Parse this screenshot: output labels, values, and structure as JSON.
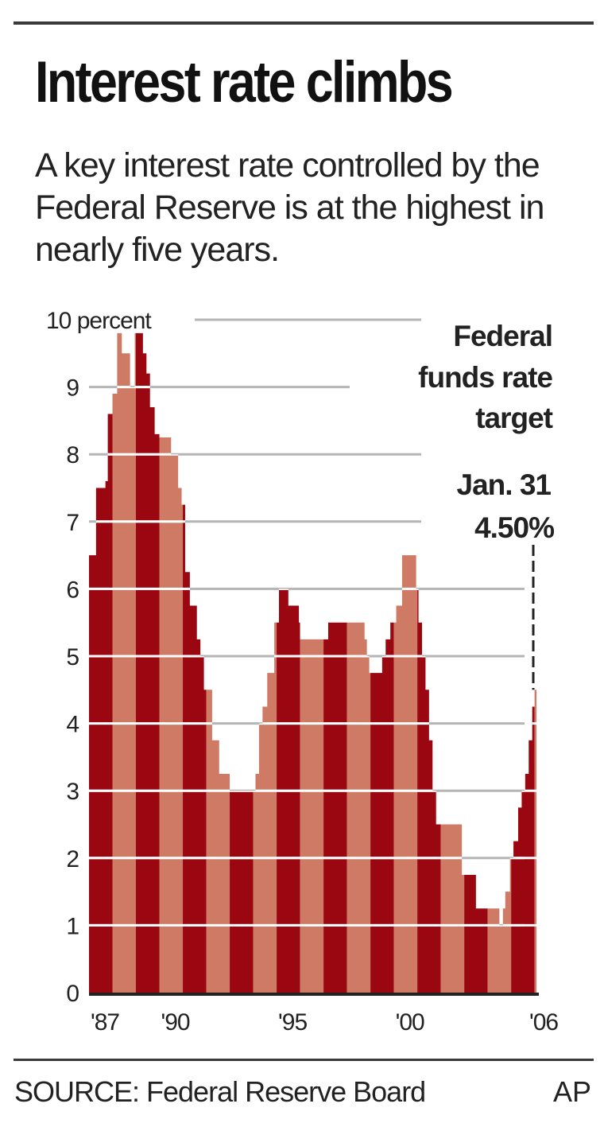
{
  "header": {
    "title": "Interest rate climbs",
    "subtitle": "A key interest rate controlled by the Federal Reserve is at the highest in nearly five years."
  },
  "footer": {
    "source": "SOURCE: Federal Reserve Board",
    "credit": "AP"
  },
  "colors": {
    "dark_band": "#9a0710",
    "light_band": "#cf7a64",
    "gridline": "#b5b5b5",
    "axis": "#222222"
  },
  "chart_data": {
    "type": "area",
    "title": "Interest rate climbs",
    "series_name": "Federal funds rate target",
    "ylabel": "10 percent",
    "ylim": [
      0,
      10
    ],
    "xlim": [
      1987,
      2006.08
    ],
    "y_ticks": [
      "0",
      "1",
      "2",
      "3",
      "4",
      "5",
      "6",
      "7",
      "8",
      "9",
      "10 percent"
    ],
    "y_tick_values": [
      0,
      1,
      2,
      3,
      4,
      5,
      6,
      7,
      8,
      9,
      10
    ],
    "x_ticks": [
      "'87",
      "'90",
      "'95",
      "'00",
      "'06"
    ],
    "x_tick_values": [
      1987,
      1990,
      1995,
      2000,
      2006
    ],
    "step": true,
    "x": [
      1987.0,
      1987.3,
      1987.7,
      1987.8,
      1988.0,
      1988.2,
      1988.4,
      1988.6,
      1988.75,
      1988.95,
      1989.1,
      1989.3,
      1989.45,
      1989.6,
      1989.8,
      1990.0,
      1990.5,
      1990.8,
      1990.95,
      1991.1,
      1991.3,
      1991.6,
      1991.75,
      1991.9,
      1992.25,
      1992.55,
      1993.0,
      1994.1,
      1994.25,
      1994.4,
      1994.6,
      1994.9,
      1995.1,
      1995.5,
      1995.95,
      1996.0,
      1997.2,
      1998.75,
      1998.85,
      1998.95,
      1999.5,
      1999.65,
      1999.85,
      2000.1,
      2000.35,
      2000.95,
      2001.05,
      2001.2,
      2001.35,
      2001.5,
      2001.65,
      2001.8,
      2002.9,
      2003.5,
      2004.5,
      2004.65,
      2004.75,
      2004.95,
      2005.1,
      2005.3,
      2005.45,
      2005.6,
      2005.75,
      2005.9,
      2006.0
    ],
    "values": [
      6.5,
      7.5,
      7.6,
      8.6,
      8.9,
      9.8,
      9.5,
      9.5,
      9.0,
      9.8,
      9.8,
      9.5,
      9.2,
      8.7,
      8.3,
      8.25,
      8.0,
      7.5,
      7.25,
      6.25,
      5.75,
      5.25,
      5.0,
      4.5,
      3.75,
      3.25,
      3.0,
      3.25,
      4.0,
      4.25,
      4.75,
      5.5,
      6.0,
      5.75,
      5.5,
      5.25,
      5.5,
      5.25,
      5.0,
      4.75,
      5.0,
      5.25,
      5.5,
      5.75,
      6.5,
      6.0,
      5.5,
      5.0,
      4.5,
      3.75,
      3.0,
      2.5,
      1.75,
      1.25,
      1.0,
      1.25,
      1.5,
      2.0,
      2.25,
      2.75,
      3.0,
      3.25,
      3.75,
      4.25,
      4.5
    ],
    "annotation": {
      "label_lines": [
        "Federal",
        "funds rate",
        "target"
      ],
      "date": "Jan. 31",
      "value_label": "4.50%",
      "value": 4.5
    }
  }
}
